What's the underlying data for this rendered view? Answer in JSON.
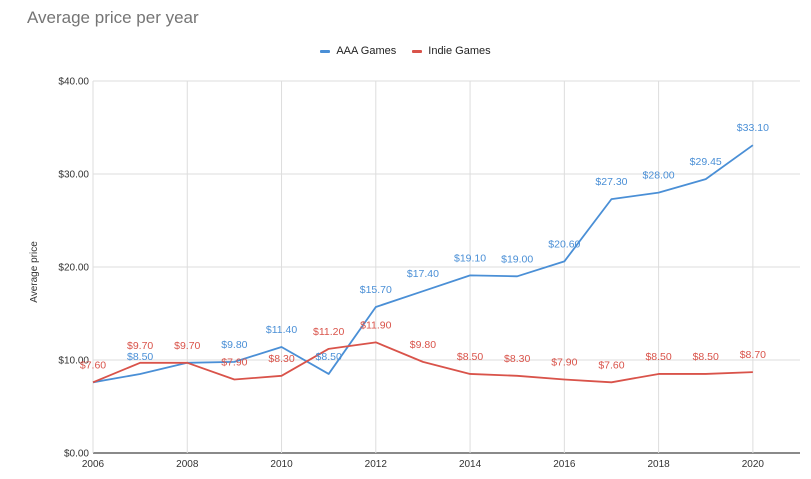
{
  "chart_data": {
    "type": "line",
    "title": "Average price per year",
    "xlabel": "",
    "ylabel": "Average price",
    "ylim": [
      0,
      40
    ],
    "y_ticks": [
      "$0.00",
      "$10.00",
      "$20.00",
      "$30.00",
      "$40.00"
    ],
    "y_tick_values": [
      0,
      10,
      20,
      30,
      40
    ],
    "x_ticks": [
      "2006",
      "2008",
      "2010",
      "2012",
      "2014",
      "2016",
      "2018",
      "2020"
    ],
    "x_tick_values": [
      2006,
      2008,
      2010,
      2012,
      2014,
      2016,
      2018,
      2020
    ],
    "xlim": [
      2006,
      2021
    ],
    "x": [
      2006,
      2007,
      2008,
      2009,
      2010,
      2011,
      2012,
      2013,
      2014,
      2015,
      2016,
      2017,
      2018,
      2019,
      2020
    ],
    "grid": true,
    "legend_position": "top-center",
    "series": [
      {
        "name": "AAA Games",
        "color": "#4a8fd6",
        "values": [
          7.6,
          8.5,
          9.7,
          9.8,
          11.4,
          8.5,
          15.7,
          17.4,
          19.1,
          19.0,
          20.6,
          27.3,
          28.0,
          29.45,
          33.1
        ],
        "labels": [
          "",
          "$8.50",
          "",
          "$9.80",
          "$11.40",
          "$8.50",
          "$15.70",
          "$17.40",
          "$19.10",
          "$19.00",
          "$20.60",
          "$27.30",
          "$28.00",
          "$29.45",
          "$33.10"
        ]
      },
      {
        "name": "Indie Games",
        "color": "#d9534a",
        "values": [
          7.6,
          9.7,
          9.7,
          7.9,
          8.3,
          11.2,
          11.9,
          9.8,
          8.5,
          8.3,
          7.9,
          7.6,
          8.5,
          8.5,
          8.7
        ],
        "labels": [
          "$7.60",
          "$9.70",
          "$9.70",
          "$7.90",
          "$8.30",
          "$11.20",
          "$11.90",
          "$9.80",
          "$8.50",
          "$8.30",
          "$7.90",
          "$7.60",
          "$8.50",
          "$8.50",
          "$8.70"
        ]
      }
    ]
  }
}
